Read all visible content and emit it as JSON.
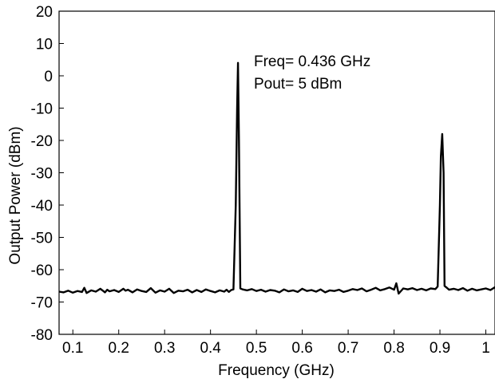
{
  "chart_data": {
    "type": "line",
    "title": "",
    "xlabel": "Frequency (GHz)",
    "ylabel": "Output Power (dBm)",
    "xlim": [
      0.07,
      1.02
    ],
    "ylim": [
      -80,
      20
    ],
    "grid": false,
    "x_ticks": [
      0.1,
      0.2,
      0.3,
      0.4,
      0.5,
      0.6,
      0.7,
      0.8,
      0.9,
      1.0
    ],
    "x_tick_labels": [
      "0.1",
      "0.2",
      "0.3",
      "0.4",
      "0.5",
      "0.6",
      "0.7",
      "0.8",
      "0.9",
      "1"
    ],
    "y_ticks": [
      20,
      10,
      0,
      -10,
      -20,
      -30,
      -40,
      -50,
      -60,
      -70,
      -80
    ],
    "y_tick_labels": [
      "20",
      "10",
      "0",
      "-10",
      "-20",
      "-30",
      "-40",
      "-50",
      "-60",
      "-70",
      "-80"
    ],
    "annotation": {
      "line1": "Freq= 0.436 GHz",
      "line2": "Pout= 5 dBm"
    },
    "series": [
      {
        "color": "#000000",
        "x": [
          0.07,
          0.08,
          0.09,
          0.1,
          0.11,
          0.12,
          0.125,
          0.13,
          0.14,
          0.15,
          0.16,
          0.17,
          0.175,
          0.18,
          0.19,
          0.2,
          0.21,
          0.215,
          0.22,
          0.23,
          0.24,
          0.25,
          0.26,
          0.27,
          0.28,
          0.29,
          0.3,
          0.31,
          0.32,
          0.33,
          0.34,
          0.35,
          0.36,
          0.37,
          0.38,
          0.39,
          0.4,
          0.41,
          0.42,
          0.43,
          0.435,
          0.44,
          0.445,
          0.45,
          0.455,
          0.458,
          0.46,
          0.462,
          0.465,
          0.47,
          0.48,
          0.49,
          0.5,
          0.51,
          0.52,
          0.53,
          0.54,
          0.55,
          0.56,
          0.57,
          0.58,
          0.59,
          0.6,
          0.61,
          0.62,
          0.63,
          0.64,
          0.65,
          0.66,
          0.67,
          0.68,
          0.69,
          0.7,
          0.71,
          0.72,
          0.73,
          0.74,
          0.75,
          0.76,
          0.77,
          0.78,
          0.79,
          0.8,
          0.805,
          0.81,
          0.82,
          0.83,
          0.84,
          0.85,
          0.86,
          0.87,
          0.88,
          0.89,
          0.895,
          0.9,
          0.902,
          0.905,
          0.908,
          0.91,
          0.915,
          0.92,
          0.93,
          0.94,
          0.95,
          0.96,
          0.97,
          0.98,
          0.99,
          1.0,
          1.01,
          1.02
        ],
        "values": [
          -66.8,
          -67.0,
          -66.5,
          -67.1,
          -66.6,
          -66.9,
          -65.6,
          -67.2,
          -66.4,
          -66.8,
          -65.9,
          -67.0,
          -66.2,
          -66.7,
          -66.3,
          -66.9,
          -65.9,
          -66.5,
          -66.2,
          -67.0,
          -66.1,
          -66.6,
          -66.9,
          -65.7,
          -67.1,
          -66.4,
          -66.8,
          -65.9,
          -67.2,
          -66.5,
          -66.7,
          -66.2,
          -67.0,
          -66.3,
          -66.9,
          -66.1,
          -66.6,
          -67.0,
          -66.4,
          -66.8,
          -66.2,
          -66.9,
          -66.3,
          -66.1,
          -40.0,
          -10.0,
          4.0,
          -20.0,
          -65.8,
          -66.1,
          -66.4,
          -66.0,
          -66.6,
          -66.2,
          -66.8,
          -66.3,
          -66.5,
          -67.0,
          -66.1,
          -66.7,
          -66.4,
          -66.9,
          -65.9,
          -66.6,
          -66.3,
          -66.8,
          -66.1,
          -67.0,
          -66.4,
          -66.6,
          -66.2,
          -66.9,
          -66.5,
          -66.0,
          -66.3,
          -65.8,
          -66.7,
          -66.2,
          -65.6,
          -66.4,
          -66.0,
          -65.5,
          -66.2,
          -64.2,
          -67.4,
          -65.8,
          -66.1,
          -65.7,
          -66.3,
          -65.9,
          -66.4,
          -65.8,
          -66.0,
          -65.2,
          -40.0,
          -25.0,
          -18.0,
          -30.0,
          -65.0,
          -65.6,
          -66.2,
          -65.9,
          -66.3,
          -65.7,
          -66.5,
          -65.9,
          -66.4,
          -66.1,
          -65.8,
          -66.3,
          -65.4
        ]
      }
    ]
  }
}
